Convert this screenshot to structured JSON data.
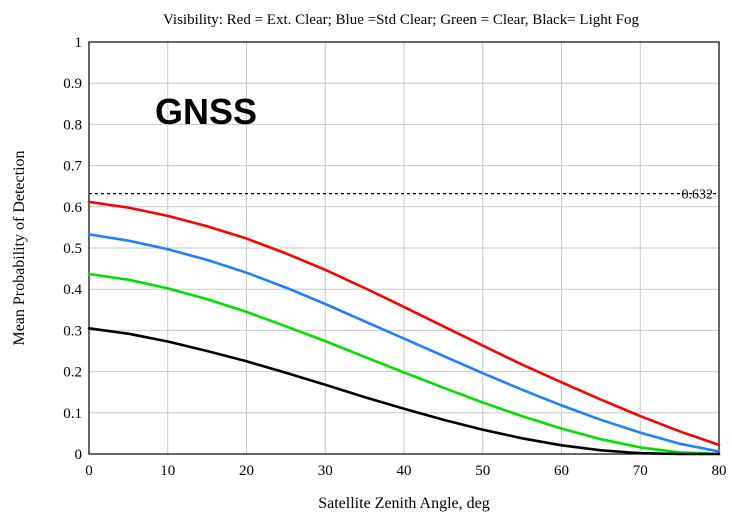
{
  "chart_data": {
    "type": "line",
    "title": "Visibility: Red = Ext. Clear; Blue =Std Clear; Green = Clear, Black= Light Fog",
    "annotation": "GNSS",
    "xlabel": "Satellite Zenith Angle, deg",
    "ylabel": "Mean Probability of Detection",
    "xlim": [
      0,
      80
    ],
    "ylim": [
      0,
      1
    ],
    "xticks": [
      "0",
      "10",
      "20",
      "30",
      "40",
      "50",
      "60",
      "70",
      "80"
    ],
    "yticks": [
      "0",
      "0.1",
      "0.2",
      "0.3",
      "0.4",
      "0.5",
      "0.6",
      "0.7",
      "0.8",
      "0.9",
      "1"
    ],
    "grid": true,
    "reference_line": {
      "y": 0.632,
      "label": "0.632",
      "style": "dashed",
      "color": "#000000"
    },
    "x": [
      0,
      5,
      10,
      15,
      20,
      25,
      30,
      35,
      40,
      45,
      50,
      55,
      60,
      65,
      70,
      75,
      80
    ],
    "series": [
      {
        "color": "#ff0000",
        "values": [
          0.612,
          0.598,
          0.578,
          0.553,
          0.523,
          0.487,
          0.447,
          0.403,
          0.357,
          0.31,
          0.263,
          0.217,
          0.174,
          0.132,
          0.092,
          0.055,
          0.022
        ]
      },
      {
        "color": "#1f7fff",
        "values": [
          0.533,
          0.518,
          0.497,
          0.471,
          0.44,
          0.404,
          0.364,
          0.322,
          0.28,
          0.238,
          0.196,
          0.156,
          0.118,
          0.083,
          0.052,
          0.025,
          0.006
        ]
      },
      {
        "color": "#00e000",
        "values": [
          0.437,
          0.423,
          0.402,
          0.376,
          0.345,
          0.31,
          0.274,
          0.236,
          0.198,
          0.161,
          0.125,
          0.092,
          0.062,
          0.036,
          0.016,
          0.004,
          0.0
        ]
      },
      {
        "color": "#000000",
        "values": [
          0.305,
          0.292,
          0.273,
          0.25,
          0.225,
          0.197,
          0.168,
          0.138,
          0.11,
          0.083,
          0.059,
          0.038,
          0.021,
          0.009,
          0.002,
          0.0,
          0.0
        ]
      }
    ]
  }
}
